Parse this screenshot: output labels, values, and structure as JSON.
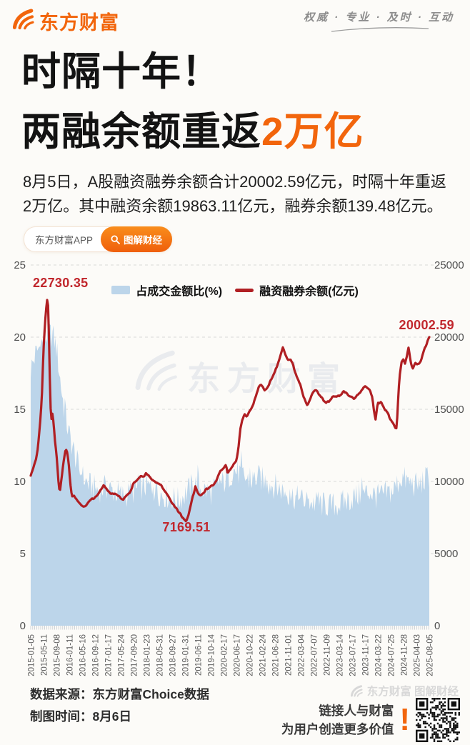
{
  "header": {
    "brand": "东方财富",
    "slogan": "权威 · 专业 · 及时 · 互动"
  },
  "title": {
    "line1": "时隔十年！",
    "line2_prefix": "两融余额重返",
    "line2_highlight": "2万亿",
    "highlight_color": "#f2650c"
  },
  "intro": {
    "text": "8月5日，A股融资融券余额合计20002.59亿元，时隔十年重返2万亿。其中融资余额19863.11亿元，融券余额139.48亿元。"
  },
  "badges": {
    "app_label": "东方财富APP",
    "search_label": "图解财经"
  },
  "chart_data": {
    "type": "area+line combo",
    "title": "",
    "grid": "dashed horizontal gridlines",
    "legend_position": "top-center",
    "watermark": "东方财富",
    "left_axis": {
      "label": "占成交金额比(%)",
      "min": 0,
      "max": 25,
      "ticks": [
        0,
        5,
        10,
        15,
        20,
        25
      ]
    },
    "right_axis": {
      "label": "融资融券余额(亿元)",
      "min": 0,
      "max": 25000,
      "ticks": [
        0,
        5000,
        10000,
        15000,
        20000,
        25000
      ]
    },
    "x_labels": [
      "2015-01-05",
      "2015-05-11",
      "2015-09-08",
      "2016-01-11",
      "2016-05-16",
      "2016-09-12",
      "2017-01-17",
      "2017-05-24",
      "2017-09-20",
      "2018-01-23",
      "2018-05-31",
      "2018-09-27",
      "2019-01-31",
      "2019-06-11",
      "2019-10-14",
      "2020-02-17",
      "2020-06-17",
      "2020-10-22",
      "2021-02-24",
      "2021-06-28",
      "2021-11-01",
      "2022-03-04",
      "2022-07-07",
      "2022-11-09",
      "2023-03-14",
      "2023-07-17",
      "2023-11-17",
      "2024-03-22",
      "2024-07-25",
      "2024-11-28",
      "2025-04-03",
      "2025-08-05"
    ],
    "legend": [
      {
        "name": "占成交金额比(%)",
        "type": "area",
        "color": "#bcd5ea"
      },
      {
        "name": "融资融券余额(亿元)",
        "type": "line",
        "color": "#b01f23"
      }
    ],
    "annotations": [
      {
        "text": "22730.35",
        "value": 22730.35,
        "series": "融资融券余额(亿元)",
        "kind": "peak-2015"
      },
      {
        "text": "7169.51",
        "value": 7169.51,
        "series": "融资融券余额(亿元)",
        "kind": "low-2019"
      },
      {
        "text": "20002.59",
        "value": 20002.59,
        "series": "融资融券余额(亿元)",
        "kind": "latest-2025-08-05"
      }
    ],
    "series": [
      {
        "name": "占成交金额比(%)",
        "axis": "left",
        "color": "#bcd5ea",
        "jitter": 0.95,
        "points": [
          [
            0,
            17.8
          ],
          [
            0.012,
            18.8
          ],
          [
            0.025,
            19.5
          ],
          [
            0.04,
            20.1
          ],
          [
            0.055,
            20.2
          ],
          [
            0.065,
            19.2
          ],
          [
            0.075,
            16.8
          ],
          [
            0.085,
            14.8
          ],
          [
            0.095,
            13.4
          ],
          [
            0.105,
            12.4
          ],
          [
            0.115,
            11.4
          ],
          [
            0.125,
            10.6
          ],
          [
            0.135,
            10.1
          ],
          [
            0.15,
            9.7
          ],
          [
            0.17,
            9.4
          ],
          [
            0.19,
            9.6
          ],
          [
            0.21,
            9.3
          ],
          [
            0.23,
            9.0
          ],
          [
            0.25,
            9.2
          ],
          [
            0.27,
            9.5
          ],
          [
            0.29,
            9.7
          ],
          [
            0.31,
            9.4
          ],
          [
            0.33,
            9.1
          ],
          [
            0.35,
            8.9
          ],
          [
            0.37,
            8.7
          ],
          [
            0.39,
            9.2
          ],
          [
            0.41,
            9.9
          ],
          [
            0.43,
            9.5
          ],
          [
            0.45,
            9.2
          ],
          [
            0.47,
            9.6
          ],
          [
            0.49,
            10.1
          ],
          [
            0.51,
            10.8
          ],
          [
            0.53,
            10.4
          ],
          [
            0.55,
            10.0
          ],
          [
            0.57,
            10.3
          ],
          [
            0.59,
            10.0
          ],
          [
            0.61,
            9.7
          ],
          [
            0.63,
            9.4
          ],
          [
            0.65,
            9.1
          ],
          [
            0.67,
            8.8
          ],
          [
            0.69,
            8.6
          ],
          [
            0.71,
            8.5
          ],
          [
            0.73,
            8.4
          ],
          [
            0.75,
            8.3
          ],
          [
            0.77,
            8.4
          ],
          [
            0.79,
            8.6
          ],
          [
            0.81,
            8.9
          ],
          [
            0.83,
            9.1
          ],
          [
            0.85,
            9.3
          ],
          [
            0.87,
            8.9
          ],
          [
            0.89,
            9.1
          ],
          [
            0.91,
            9.4
          ],
          [
            0.93,
            10.3
          ],
          [
            0.95,
            9.9
          ],
          [
            0.97,
            9.7
          ],
          [
            0.985,
            10.0
          ],
          [
            1,
            10.4
          ]
        ]
      },
      {
        "name": "融资融券余额(亿元)",
        "axis": "right",
        "color": "#b01f23",
        "jitter": 55,
        "points": [
          [
            0,
            10400
          ],
          [
            0.006,
            10900
          ],
          [
            0.012,
            11400
          ],
          [
            0.018,
            12300
          ],
          [
            0.024,
            14200
          ],
          [
            0.028,
            16000
          ],
          [
            0.032,
            19100
          ],
          [
            0.036,
            21000
          ],
          [
            0.04,
            22400
          ],
          [
            0.042,
            22730.35
          ],
          [
            0.044,
            22000
          ],
          [
            0.047,
            18500
          ],
          [
            0.049,
            15500
          ],
          [
            0.052,
            14300
          ],
          [
            0.055,
            14800
          ],
          [
            0.058,
            13800
          ],
          [
            0.061,
            12800
          ],
          [
            0.064,
            12100
          ],
          [
            0.067,
            11000
          ],
          [
            0.07,
            9800
          ],
          [
            0.073,
            9150
          ],
          [
            0.076,
            9900
          ],
          [
            0.08,
            10900
          ],
          [
            0.084,
            11700
          ],
          [
            0.088,
            12250
          ],
          [
            0.092,
            12000
          ],
          [
            0.096,
            11000
          ],
          [
            0.099,
            9900
          ],
          [
            0.103,
            9000
          ],
          [
            0.108,
            9050
          ],
          [
            0.113,
            8800
          ],
          [
            0.119,
            8600
          ],
          [
            0.125,
            8450
          ],
          [
            0.129,
            8350
          ],
          [
            0.133,
            8300
          ],
          [
            0.136,
            8250
          ],
          [
            0.141,
            8450
          ],
          [
            0.147,
            8650
          ],
          [
            0.154,
            8800
          ],
          [
            0.161,
            8900
          ],
          [
            0.168,
            9100
          ],
          [
            0.175,
            9400
          ],
          [
            0.182,
            9700
          ],
          [
            0.188,
            9600
          ],
          [
            0.194,
            9350
          ],
          [
            0.2,
            9150
          ],
          [
            0.206,
            9100
          ],
          [
            0.212,
            9200
          ],
          [
            0.219,
            9050
          ],
          [
            0.226,
            8850
          ],
          [
            0.232,
            8750
          ],
          [
            0.239,
            8950
          ],
          [
            0.246,
            9150
          ],
          [
            0.252,
            9450
          ],
          [
            0.258,
            9850
          ],
          [
            0.265,
            10000
          ],
          [
            0.271,
            10200
          ],
          [
            0.277,
            10400
          ],
          [
            0.284,
            10300
          ],
          [
            0.29,
            10600
          ],
          [
            0.296,
            10400
          ],
          [
            0.303,
            10100
          ],
          [
            0.31,
            10000
          ],
          [
            0.316,
            9950
          ],
          [
            0.323,
            9830
          ],
          [
            0.33,
            9600
          ],
          [
            0.338,
            9250
          ],
          [
            0.346,
            8900
          ],
          [
            0.355,
            8450
          ],
          [
            0.362,
            8250
          ],
          [
            0.37,
            7950
          ],
          [
            0.378,
            7650
          ],
          [
            0.384,
            7400
          ],
          [
            0.39,
            7169.51
          ],
          [
            0.396,
            7650
          ],
          [
            0.402,
            8400
          ],
          [
            0.408,
            9100
          ],
          [
            0.413,
            9650
          ],
          [
            0.419,
            9200
          ],
          [
            0.426,
            9050
          ],
          [
            0.432,
            9150
          ],
          [
            0.439,
            9400
          ],
          [
            0.445,
            9550
          ],
          [
            0.452,
            9650
          ],
          [
            0.458,
            9750
          ],
          [
            0.465,
            10050
          ],
          [
            0.471,
            10450
          ],
          [
            0.477,
            10800
          ],
          [
            0.484,
            10950
          ],
          [
            0.49,
            11150
          ],
          [
            0.494,
            10500
          ],
          [
            0.499,
            10800
          ],
          [
            0.505,
            11050
          ],
          [
            0.51,
            11200
          ],
          [
            0.516,
            11450
          ],
          [
            0.521,
            12300
          ],
          [
            0.526,
            13700
          ],
          [
            0.531,
            14350
          ],
          [
            0.537,
            14650
          ],
          [
            0.543,
            14500
          ],
          [
            0.548,
            14800
          ],
          [
            0.554,
            15100
          ],
          [
            0.56,
            15500
          ],
          [
            0.566,
            16000
          ],
          [
            0.572,
            16600
          ],
          [
            0.577,
            16750
          ],
          [
            0.581,
            16600
          ],
          [
            0.586,
            16300
          ],
          [
            0.592,
            16450
          ],
          [
            0.599,
            16800
          ],
          [
            0.606,
            17200
          ],
          [
            0.613,
            17600
          ],
          [
            0.619,
            18100
          ],
          [
            0.626,
            18650
          ],
          [
            0.633,
            19300
          ],
          [
            0.639,
            18800
          ],
          [
            0.645,
            18450
          ],
          [
            0.651,
            18500
          ],
          [
            0.657,
            18150
          ],
          [
            0.664,
            17550
          ],
          [
            0.67,
            17050
          ],
          [
            0.677,
            16700
          ],
          [
            0.683,
            16050
          ],
          [
            0.688,
            15600
          ],
          [
            0.694,
            15250
          ],
          [
            0.7,
            15650
          ],
          [
            0.706,
            16050
          ],
          [
            0.71,
            16250
          ],
          [
            0.716,
            16300
          ],
          [
            0.722,
            16100
          ],
          [
            0.728,
            15850
          ],
          [
            0.735,
            15600
          ],
          [
            0.742,
            15450
          ],
          [
            0.748,
            15550
          ],
          [
            0.754,
            15750
          ],
          [
            0.761,
            15900
          ],
          [
            0.768,
            15850
          ],
          [
            0.774,
            15950
          ],
          [
            0.78,
            16100
          ],
          [
            0.786,
            16300
          ],
          [
            0.792,
            16100
          ],
          [
            0.799,
            15900
          ],
          [
            0.806,
            15850
          ],
          [
            0.812,
            15700
          ],
          [
            0.818,
            15900
          ],
          [
            0.825,
            16150
          ],
          [
            0.831,
            16400
          ],
          [
            0.839,
            16600
          ],
          [
            0.845,
            16500
          ],
          [
            0.851,
            16350
          ],
          [
            0.857,
            15800
          ],
          [
            0.861,
            14900
          ],
          [
            0.865,
            14250
          ],
          [
            0.868,
            14900
          ],
          [
            0.871,
            15400
          ],
          [
            0.877,
            15500
          ],
          [
            0.883,
            15300
          ],
          [
            0.889,
            15000
          ],
          [
            0.896,
            14700
          ],
          [
            0.903,
            14300
          ],
          [
            0.909,
            14000
          ],
          [
            0.914,
            13750
          ],
          [
            0.917,
            13600
          ],
          [
            0.92,
            14600
          ],
          [
            0.923,
            16300
          ],
          [
            0.926,
            17400
          ],
          [
            0.93,
            18200
          ],
          [
            0.935,
            18450
          ],
          [
            0.939,
            18150
          ],
          [
            0.943,
            18600
          ],
          [
            0.948,
            19350
          ],
          [
            0.953,
            18400
          ],
          [
            0.958,
            17750
          ],
          [
            0.962,
            18100
          ],
          [
            0.966,
            18300
          ],
          [
            0.97,
            18050
          ],
          [
            0.974,
            18200
          ],
          [
            0.978,
            18350
          ],
          [
            0.982,
            18650
          ],
          [
            0.986,
            19000
          ],
          [
            0.99,
            19300
          ],
          [
            0.994,
            19600
          ],
          [
            1,
            20002.59
          ]
        ]
      }
    ]
  },
  "footer": {
    "source": "数据来源：东方财富Choice数据",
    "time": "制图时间：8月6日",
    "watermark": "东方财富 图解财经",
    "tagline1": "链接人与财富",
    "tagline2": "为用户创造更多价值",
    "exclamation": "!"
  },
  "colors": {
    "brand_orange": "#f2650c",
    "line_red": "#b01f23",
    "annotation_red": "#c1272d",
    "area_blue": "#bcd5ea",
    "axis_gray": "#4f4f4f",
    "background": "#fcfbf8"
  }
}
